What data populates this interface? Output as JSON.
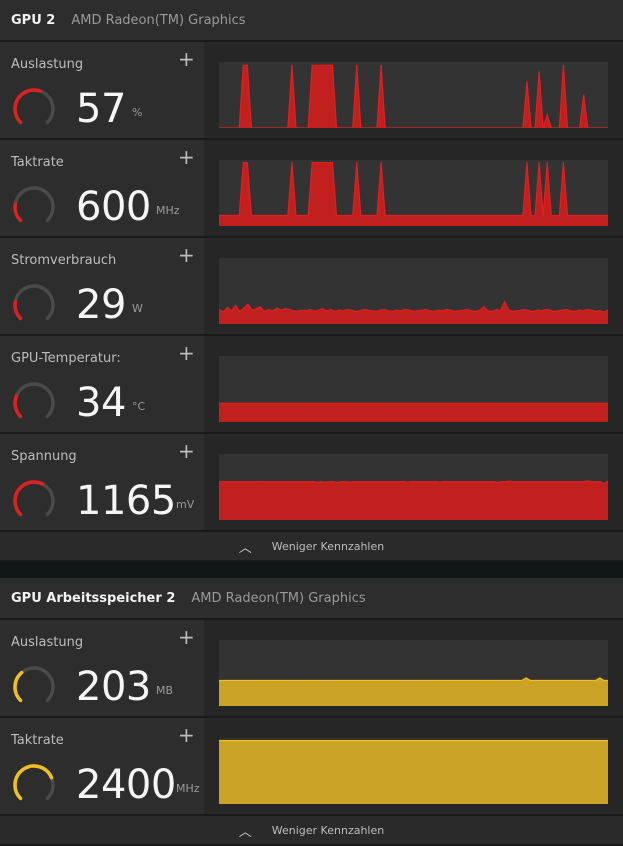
{
  "sections": [
    {
      "title": "GPU 2",
      "subtitle": "AMD Radeon(TM) Graphics",
      "accent": "#e02020",
      "fill": "#c21f1f",
      "metrics": [
        {
          "label": "Auslastung",
          "value": "57",
          "unit": "%",
          "gauge_fraction": 0.57,
          "chart_data": {
            "type": "area",
            "ylim": [
              0,
              100
            ],
            "values": [
              0,
              0,
              0,
              0,
              0,
              0,
              95,
              95,
              0,
              0,
              0,
              0,
              0,
              0,
              0,
              0,
              0,
              0,
              95,
              0,
              0,
              0,
              0,
              95,
              95,
              95,
              95,
              95,
              95,
              0,
              0,
              0,
              0,
              0,
              95,
              0,
              0,
              0,
              0,
              0,
              95,
              0,
              0,
              0,
              0,
              0,
              0,
              0,
              0,
              0,
              0,
              0,
              0,
              0,
              0,
              0,
              0,
              0,
              0,
              0,
              0,
              0,
              0,
              0,
              0,
              0,
              0,
              0,
              0,
              0,
              0,
              0,
              0,
              0,
              0,
              0,
              70,
              0,
              0,
              85,
              0,
              20,
              0,
              0,
              0,
              95,
              0,
              0,
              0,
              0,
              50,
              0,
              0,
              0,
              0,
              0,
              0
            ]
          }
        },
        {
          "label": "Taktrate",
          "value": "600",
          "unit": "MHz",
          "gauge_fraction": 0.2,
          "chart_data": {
            "type": "area",
            "ylim": [
              0,
              2500
            ],
            "values": [
              400,
              400,
              400,
              400,
              400,
              400,
              2400,
              2400,
              400,
              400,
              400,
              400,
              400,
              400,
              400,
              400,
              400,
              400,
              2400,
              400,
              400,
              400,
              400,
              2400,
              2400,
              2400,
              2400,
              2400,
              2400,
              400,
              400,
              400,
              400,
              400,
              2400,
              400,
              400,
              400,
              400,
              400,
              2400,
              400,
              400,
              400,
              400,
              400,
              400,
              400,
              400,
              400,
              400,
              400,
              400,
              400,
              400,
              400,
              400,
              400,
              400,
              400,
              400,
              400,
              400,
              400,
              400,
              400,
              400,
              400,
              400,
              400,
              400,
              400,
              400,
              400,
              400,
              400,
              2400,
              400,
              400,
              2400,
              400,
              2400,
              400,
              400,
              400,
              2400,
              400,
              400,
              400,
              400,
              400,
              400,
              400,
              400,
              400,
              400,
              400
            ]
          }
        },
        {
          "label": "Stromverbrauch",
          "value": "29",
          "unit": "W",
          "gauge_fraction": 0.2,
          "chart_data": {
            "type": "area",
            "ylim": [
              0,
              100
            ],
            "values": [
              22,
              18,
              25,
              20,
              28,
              19,
              24,
              30,
              21,
              23,
              26,
              19,
              22,
              20,
              24,
              21,
              23,
              22,
              20,
              19,
              21,
              20,
              22,
              19,
              21,
              23,
              20,
              22,
              19,
              21,
              20,
              22,
              21,
              19,
              20,
              22,
              21,
              20,
              19,
              21,
              22,
              20,
              19,
              21,
              20,
              22,
              21,
              19,
              20,
              21,
              22,
              20,
              19,
              21,
              20,
              22,
              21,
              19,
              20,
              21,
              22,
              20,
              19,
              21,
              26,
              20,
              19,
              22,
              20,
              34,
              21,
              19,
              20,
              21,
              22,
              20,
              19,
              21,
              20,
              22,
              21,
              19,
              20,
              21,
              22,
              20,
              19,
              21,
              20,
              22,
              21,
              19,
              20,
              18,
              21
            ]
          }
        },
        {
          "label": "GPU-Temperatur:",
          "value": "34",
          "unit": "°C",
          "gauge_fraction": 0.25,
          "chart_data": {
            "type": "area",
            "ylim": [
              0,
              120
            ],
            "values": [
              34,
              34,
              34,
              34,
              34,
              34,
              34,
              34,
              34,
              34,
              34,
              34,
              34,
              34,
              34,
              34,
              34,
              34,
              34,
              34,
              34,
              34,
              34,
              34,
              34,
              34,
              34,
              34,
              34,
              34,
              34,
              34,
              34,
              34,
              34,
              34,
              34,
              34,
              34,
              34,
              34,
              34,
              34,
              34,
              34,
              34,
              34,
              34,
              34,
              34,
              34,
              34,
              34,
              34,
              34,
              34,
              34,
              34,
              34,
              34,
              34,
              34,
              34,
              34,
              34,
              34,
              34,
              34,
              34,
              34,
              34,
              34,
              34,
              34,
              34,
              34,
              34,
              34,
              34,
              34,
              34,
              34,
              34,
              34,
              34,
              34,
              34,
              34,
              34,
              34,
              34,
              34,
              34,
              34,
              34,
              34,
              34
            ]
          }
        },
        {
          "label": "Spannung",
          "value": "1165",
          "unit": "mV",
          "gauge_fraction": 0.6,
          "chart_data": {
            "type": "area",
            "ylim": [
              0,
              2000
            ],
            "values": [
              1160,
              1165,
              1160,
              1165,
              1160,
              1165,
              1160,
              1165,
              1160,
              1165,
              1165,
              1165,
              1160,
              1165,
              1160,
              1165,
              1160,
              1165,
              1160,
              1165,
              1160,
              1165,
              1160,
              1165,
              1140,
              1160,
              1140,
              1165,
              1160,
              1140,
              1165,
              1160,
              1150,
              1165,
              1160,
              1165,
              1160,
              1165,
              1160,
              1165,
              1160,
              1165,
              1160,
              1165,
              1160,
              1165,
              1150,
              1165,
              1160,
              1165,
              1160,
              1165,
              1160,
              1165,
              1150,
              1165,
              1160,
              1165,
              1160,
              1165,
              1160,
              1165,
              1160,
              1165,
              1160,
              1165,
              1160,
              1165,
              1140,
              1165,
              1160,
              1180,
              1160,
              1165,
              1160,
              1165,
              1160,
              1165,
              1160,
              1165,
              1160,
              1165,
              1160,
              1165,
              1160,
              1165,
              1160,
              1165,
              1160,
              1165,
              1180,
              1165,
              1160,
              1165,
              1100,
              1180
            ]
          }
        }
      ],
      "footer_label": "Weniger Kennzahlen"
    },
    {
      "title": "GPU Arbeitsspeicher 2",
      "subtitle": "AMD Radeon(TM) Graphics",
      "accent": "#f0c020",
      "fill": "#c9a226",
      "metrics": [
        {
          "label": "Auslastung",
          "value": "203",
          "unit": "MB",
          "gauge_fraction": 0.35,
          "chart_data": {
            "type": "area",
            "ylim": [
              0,
              800
            ],
            "values": [
              310,
              310,
              310,
              310,
              310,
              310,
              310,
              310,
              310,
              310,
              310,
              310,
              310,
              310,
              310,
              310,
              310,
              310,
              310,
              310,
              310,
              310,
              310,
              310,
              310,
              310,
              310,
              310,
              310,
              310,
              310,
              310,
              310,
              310,
              310,
              310,
              310,
              310,
              310,
              310,
              310,
              310,
              310,
              310,
              310,
              310,
              310,
              310,
              310,
              310,
              310,
              310,
              310,
              310,
              310,
              310,
              310,
              310,
              310,
              310,
              310,
              310,
              310,
              310,
              310,
              310,
              310,
              310,
              310,
              310,
              310,
              310,
              310,
              310,
              310,
              340,
              310,
              310,
              310,
              310,
              310,
              310,
              310,
              310,
              310,
              310,
              310,
              310,
              310,
              310,
              310,
              310,
              310,
              340,
              310,
              310
            ]
          }
        },
        {
          "label": "Taktrate",
          "value": "2400",
          "unit": "MHz",
          "gauge_fraction": 0.75,
          "chart_data": {
            "type": "area",
            "ylim": [
              0,
              2500
            ],
            "values": [
              2400,
              2400,
              2400,
              2400,
              2400,
              2400,
              2400,
              2400,
              2400,
              2400,
              2400,
              2400,
              2400,
              2400,
              2400,
              2400,
              2400,
              2400,
              2400,
              2400,
              2400,
              2400,
              2400,
              2400,
              2400,
              2400,
              2400,
              2400,
              2400,
              2400,
              2400,
              2400,
              2400,
              2400,
              2400,
              2400,
              2400,
              2400,
              2400,
              2400,
              2400,
              2400,
              2400,
              2400,
              2400,
              2400,
              2400,
              2400,
              2400,
              2400,
              2400,
              2400,
              2400,
              2400,
              2400,
              2400,
              2400,
              2400,
              2400,
              2400,
              2400,
              2400,
              2400,
              2400,
              2400,
              2400,
              2400,
              2400,
              2400,
              2400,
              2400,
              2400,
              2400,
              2400,
              2400,
              2400,
              2400,
              2400,
              2400,
              2400,
              2400,
              2400,
              2400,
              2400,
              2400,
              2400,
              2400,
              2400,
              2400,
              2400,
              2400,
              2400,
              2400,
              2400,
              2400,
              2400
            ]
          }
        }
      ],
      "footer_label": "Weniger Kennzahlen"
    }
  ],
  "icons": {
    "plus": "plus-icon",
    "chevron": "chevron-up-icon",
    "gauge": "gauge-icon"
  }
}
